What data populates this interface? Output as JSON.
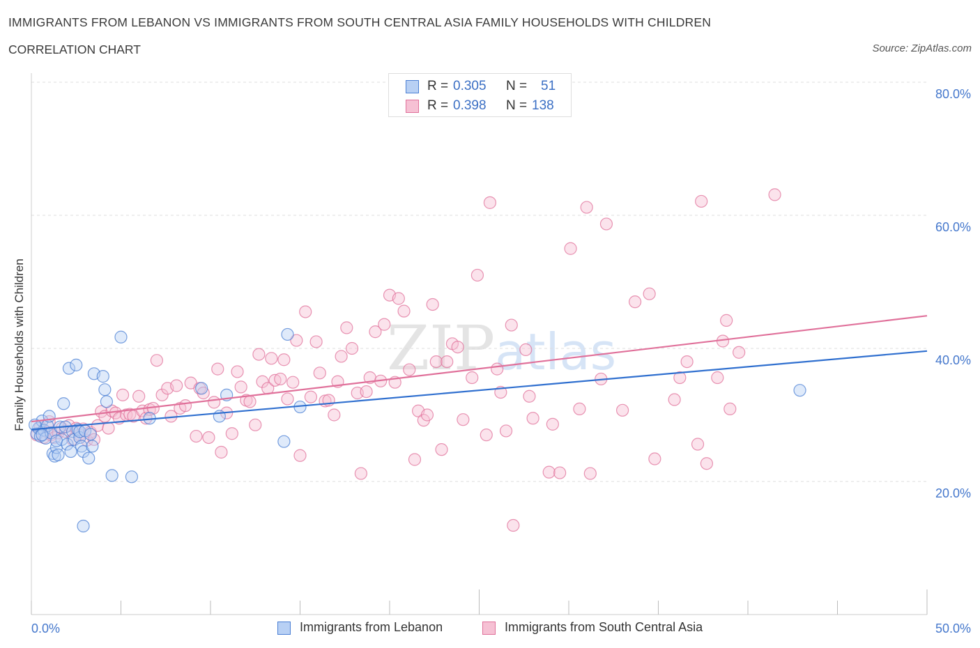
{
  "title": "IMMIGRANTS FROM LEBANON VS IMMIGRANTS FROM SOUTH CENTRAL ASIA FAMILY HOUSEHOLDS WITH CHILDREN",
  "subtitle": "CORRELATION CHART",
  "source": "Source: ZipAtlas.com",
  "watermark": "ZIPatlas",
  "colors": {
    "blue": "#4a7fd4",
    "blue_fill": "#b8d0f4",
    "pink": "#e0709a",
    "pink_fill": "#f6c1d4",
    "tick_label": "#4477cc",
    "grid": "#dddddd"
  },
  "legend": {
    "r_label": "R =",
    "n_label": "N =",
    "rows": [
      {
        "r": "0.305",
        "n": "51",
        "series": "Immigrants from Lebanon"
      },
      {
        "r": "0.398",
        "n": "138",
        "series": "Immigrants from South Central Asia"
      }
    ]
  },
  "chart_data": {
    "type": "scatter",
    "title": "IMMIGRANTS FROM LEBANON VS IMMIGRANTS FROM SOUTH CENTRAL ASIA FAMILY HOUSEHOLDS WITH CHILDREN",
    "xlabel": "",
    "ylabel": "Family Households with Children",
    "xlim": [
      0,
      50
    ],
    "ylim": [
      0,
      80
    ],
    "x_tick_labels": [
      "0.0%",
      "50.0%"
    ],
    "y_ticks": [
      20,
      40,
      60,
      80
    ],
    "y_tick_labels": [
      "20.0%",
      "40.0%",
      "60.0%",
      "80.0%"
    ],
    "grid": true,
    "legend_position": "top-center",
    "series": [
      {
        "name": "Immigrants from Lebanon",
        "color": "#4a7fd4",
        "trend": {
          "x": [
            0,
            50
          ],
          "y": [
            27.8,
            39.6
          ]
        },
        "points": [
          [
            0.3,
            27.2
          ],
          [
            0.4,
            28.0
          ],
          [
            0.5,
            26.8
          ],
          [
            0.6,
            29.1
          ],
          [
            0.7,
            27.7
          ],
          [
            0.8,
            26.5
          ],
          [
            0.9,
            28.4
          ],
          [
            1.0,
            29.8
          ],
          [
            1.1,
            27.3
          ],
          [
            1.2,
            24.2
          ],
          [
            1.3,
            23.8
          ],
          [
            1.4,
            25.1
          ],
          [
            1.5,
            24.0
          ],
          [
            1.6,
            28.2
          ],
          [
            1.7,
            26.3
          ],
          [
            1.4,
            26.1
          ],
          [
            1.8,
            31.7
          ],
          [
            1.9,
            28.2
          ],
          [
            2.0,
            25.6
          ],
          [
            2.1,
            37.0
          ],
          [
            2.2,
            24.5
          ],
          [
            2.3,
            27.5
          ],
          [
            2.4,
            26.3
          ],
          [
            2.5,
            37.5
          ],
          [
            2.6,
            27.8
          ],
          [
            2.7,
            26.6
          ],
          [
            2.8,
            25.3
          ],
          [
            2.9,
            24.5
          ],
          [
            2.7,
            27.5
          ],
          [
            2.9,
            13.3
          ],
          [
            3.0,
            27.6
          ],
          [
            3.2,
            23.5
          ],
          [
            3.3,
            27.1
          ],
          [
            3.5,
            36.2
          ],
          [
            3.4,
            25.3
          ],
          [
            4.0,
            35.8
          ],
          [
            4.1,
            33.8
          ],
          [
            4.2,
            32.0
          ],
          [
            4.5,
            20.9
          ],
          [
            5.0,
            41.7
          ],
          [
            5.6,
            20.7
          ],
          [
            6.6,
            29.5
          ],
          [
            9.5,
            34.0
          ],
          [
            10.5,
            29.8
          ],
          [
            10.9,
            33.0
          ],
          [
            14.1,
            26.0
          ],
          [
            14.3,
            42.1
          ],
          [
            15.0,
            31.2
          ],
          [
            42.9,
            33.7
          ],
          [
            0.2,
            28.5
          ],
          [
            0.6,
            27.0
          ]
        ]
      },
      {
        "name": "Immigrants from South Central Asia",
        "color": "#e0709a",
        "trend": {
          "x": [
            0,
            50
          ],
          "y": [
            29.0,
            44.9
          ]
        },
        "points": [
          [
            0.3,
            27.0
          ],
          [
            0.5,
            28.2
          ],
          [
            0.7,
            26.6
          ],
          [
            0.9,
            27.4
          ],
          [
            1.1,
            27.0
          ],
          [
            1.3,
            26.6
          ],
          [
            1.5,
            27.3
          ],
          [
            1.7,
            28.0
          ],
          [
            1.9,
            27.5
          ],
          [
            2.1,
            28.4
          ],
          [
            2.3,
            26.3
          ],
          [
            2.5,
            28.0
          ],
          [
            2.7,
            27.0
          ],
          [
            2.9,
            27.9
          ],
          [
            3.1,
            26.2
          ],
          [
            3.3,
            27.4
          ],
          [
            3.5,
            26.3
          ],
          [
            3.7,
            28.4
          ],
          [
            3.9,
            30.5
          ],
          [
            4.1,
            29.8
          ],
          [
            4.3,
            28.0
          ],
          [
            4.5,
            30.6
          ],
          [
            4.7,
            30.3
          ],
          [
            4.9,
            29.5
          ],
          [
            5.1,
            33.0
          ],
          [
            5.3,
            30.0
          ],
          [
            5.5,
            30.1
          ],
          [
            5.7,
            29.8
          ],
          [
            6.0,
            32.8
          ],
          [
            6.2,
            30.6
          ],
          [
            6.4,
            29.5
          ],
          [
            6.6,
            30.8
          ],
          [
            6.8,
            31.0
          ],
          [
            7.0,
            38.2
          ],
          [
            7.3,
            33.0
          ],
          [
            7.6,
            34.0
          ],
          [
            7.8,
            29.8
          ],
          [
            8.1,
            34.4
          ],
          [
            8.3,
            31.0
          ],
          [
            8.6,
            31.4
          ],
          [
            8.9,
            34.8
          ],
          [
            9.2,
            26.8
          ],
          [
            9.4,
            34.0
          ],
          [
            9.6,
            33.3
          ],
          [
            9.9,
            26.6
          ],
          [
            10.2,
            31.9
          ],
          [
            10.4,
            36.9
          ],
          [
            10.6,
            24.4
          ],
          [
            10.9,
            30.3
          ],
          [
            11.2,
            27.2
          ],
          [
            11.5,
            36.5
          ],
          [
            11.7,
            34.2
          ],
          [
            12.0,
            32.2
          ],
          [
            12.2,
            32.0
          ],
          [
            12.5,
            28.5
          ],
          [
            12.7,
            39.1
          ],
          [
            12.9,
            35.0
          ],
          [
            13.2,
            34.0
          ],
          [
            13.4,
            38.5
          ],
          [
            13.6,
            35.2
          ],
          [
            13.9,
            35.4
          ],
          [
            14.1,
            38.3
          ],
          [
            14.3,
            32.4
          ],
          [
            14.6,
            34.9
          ],
          [
            14.8,
            41.2
          ],
          [
            15.0,
            23.9
          ],
          [
            15.3,
            45.5
          ],
          [
            15.6,
            32.7
          ],
          [
            15.9,
            41.0
          ],
          [
            16.1,
            36.3
          ],
          [
            16.4,
            32.1
          ],
          [
            16.6,
            32.2
          ],
          [
            16.9,
            30.0
          ],
          [
            17.1,
            35.0
          ],
          [
            17.3,
            38.8
          ],
          [
            17.6,
            43.1
          ],
          [
            17.9,
            40.0
          ],
          [
            18.2,
            33.3
          ],
          [
            18.4,
            21.2
          ],
          [
            18.7,
            33.5
          ],
          [
            18.9,
            35.6
          ],
          [
            19.2,
            42.5
          ],
          [
            19.5,
            35.1
          ],
          [
            19.7,
            43.6
          ],
          [
            20.0,
            48.0
          ],
          [
            20.3,
            34.9
          ],
          [
            20.5,
            47.5
          ],
          [
            20.8,
            45.6
          ],
          [
            21.1,
            36.8
          ],
          [
            21.4,
            23.3
          ],
          [
            21.6,
            30.6
          ],
          [
            21.9,
            29.2
          ],
          [
            22.1,
            30.0
          ],
          [
            22.4,
            46.6
          ],
          [
            22.6,
            38.0
          ],
          [
            22.9,
            24.8
          ],
          [
            23.2,
            38.0
          ],
          [
            23.5,
            40.7
          ],
          [
            23.8,
            40.2
          ],
          [
            24.1,
            29.3
          ],
          [
            24.6,
            35.6
          ],
          [
            24.9,
            51.0
          ],
          [
            25.4,
            27.0
          ],
          [
            25.6,
            61.9
          ],
          [
            26.0,
            36.9
          ],
          [
            26.2,
            33.4
          ],
          [
            26.5,
            27.6
          ],
          [
            26.8,
            43.5
          ],
          [
            26.9,
            13.4
          ],
          [
            27.6,
            39.8
          ],
          [
            27.8,
            32.8
          ],
          [
            28.0,
            29.5
          ],
          [
            28.9,
            21.4
          ],
          [
            29.1,
            28.6
          ],
          [
            29.5,
            21.3
          ],
          [
            30.1,
            55.0
          ],
          [
            30.6,
            30.9
          ],
          [
            31.0,
            61.2
          ],
          [
            31.2,
            21.2
          ],
          [
            31.8,
            35.4
          ],
          [
            32.1,
            58.7
          ],
          [
            33.0,
            30.7
          ],
          [
            33.7,
            47.0
          ],
          [
            34.5,
            48.2
          ],
          [
            34.8,
            23.4
          ],
          [
            35.9,
            32.3
          ],
          [
            36.2,
            35.6
          ],
          [
            36.6,
            38.0
          ],
          [
            37.2,
            25.6
          ],
          [
            37.4,
            62.1
          ],
          [
            37.7,
            22.7
          ],
          [
            38.3,
            35.6
          ],
          [
            38.6,
            41.1
          ],
          [
            38.8,
            44.2
          ],
          [
            39.0,
            30.9
          ],
          [
            39.5,
            39.4
          ],
          [
            41.5,
            63.1
          ],
          [
            1.0,
            29.0
          ]
        ]
      }
    ]
  }
}
